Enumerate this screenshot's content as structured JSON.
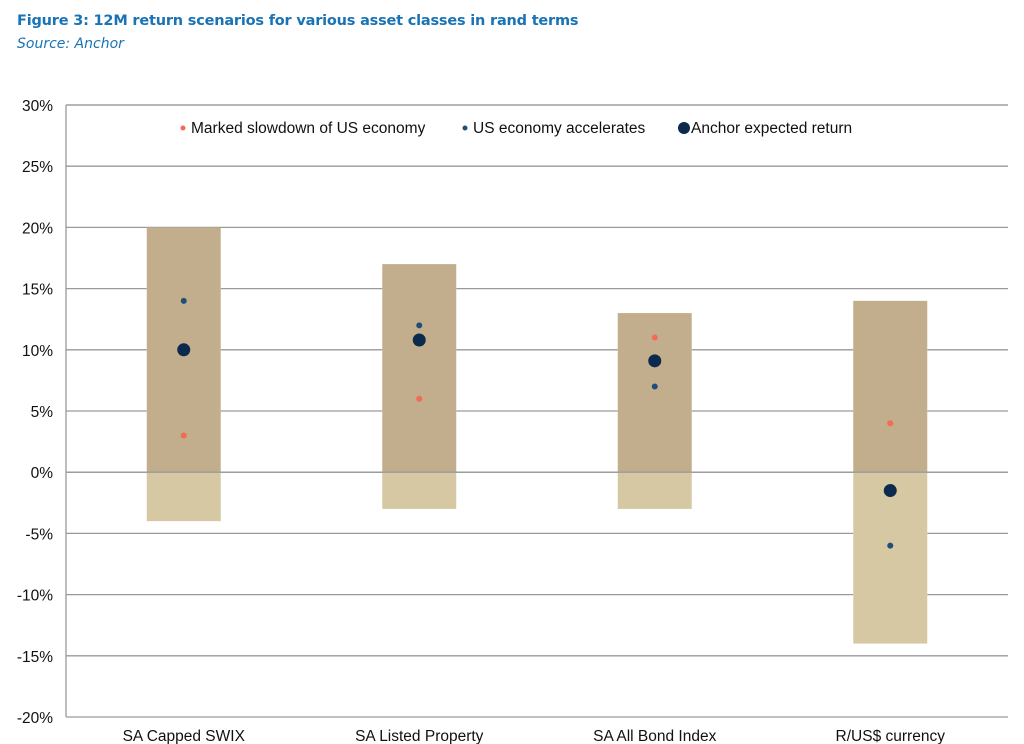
{
  "header": {
    "title": "Figure 3: 12M return scenarios for various asset classes in rand terms",
    "source": "Source: Anchor"
  },
  "chart_data": {
    "type": "scatter",
    "title": "12M return scenarios for various asset classes in rand terms",
    "xlabel": "",
    "ylabel": "",
    "ylim": [
      -20,
      30
    ],
    "y_ticks": [
      30,
      25,
      20,
      15,
      10,
      5,
      0,
      -5,
      -10,
      -15,
      -20
    ],
    "y_tick_labels": [
      "30%",
      "25%",
      "20%",
      "15%",
      "10%",
      "5%",
      "0%",
      "-5%",
      "-10%",
      "-15%",
      "-20%"
    ],
    "grid": true,
    "legend_position": "top",
    "categories": [
      "SA Capped SWIX",
      "SA Listed Property",
      "SA All Bond Index",
      "R/US$ currency"
    ],
    "ranges": [
      {
        "low": -4,
        "high": 20
      },
      {
        "low": -3,
        "high": 17
      },
      {
        "low": -3,
        "high": 13
      },
      {
        "low": -14,
        "high": 14
      }
    ],
    "series": [
      {
        "name": "Marked slowdown of US economy",
        "color": "#f26b55",
        "marker": "small",
        "values": [
          3,
          6,
          11,
          4
        ]
      },
      {
        "name": "US economy accelerates",
        "color": "#1f4e79",
        "marker": "small",
        "values": [
          14,
          12,
          7,
          -6
        ]
      },
      {
        "name": "Anchor expected return",
        "color": "#0c2a4d",
        "marker": "large",
        "values": [
          10,
          10.8,
          9.1,
          -1.5
        ]
      }
    ],
    "colors": {
      "range_positive": "#c2ae8c",
      "range_negative": "#d6c8a2",
      "grid": "#9a9a9a"
    }
  }
}
